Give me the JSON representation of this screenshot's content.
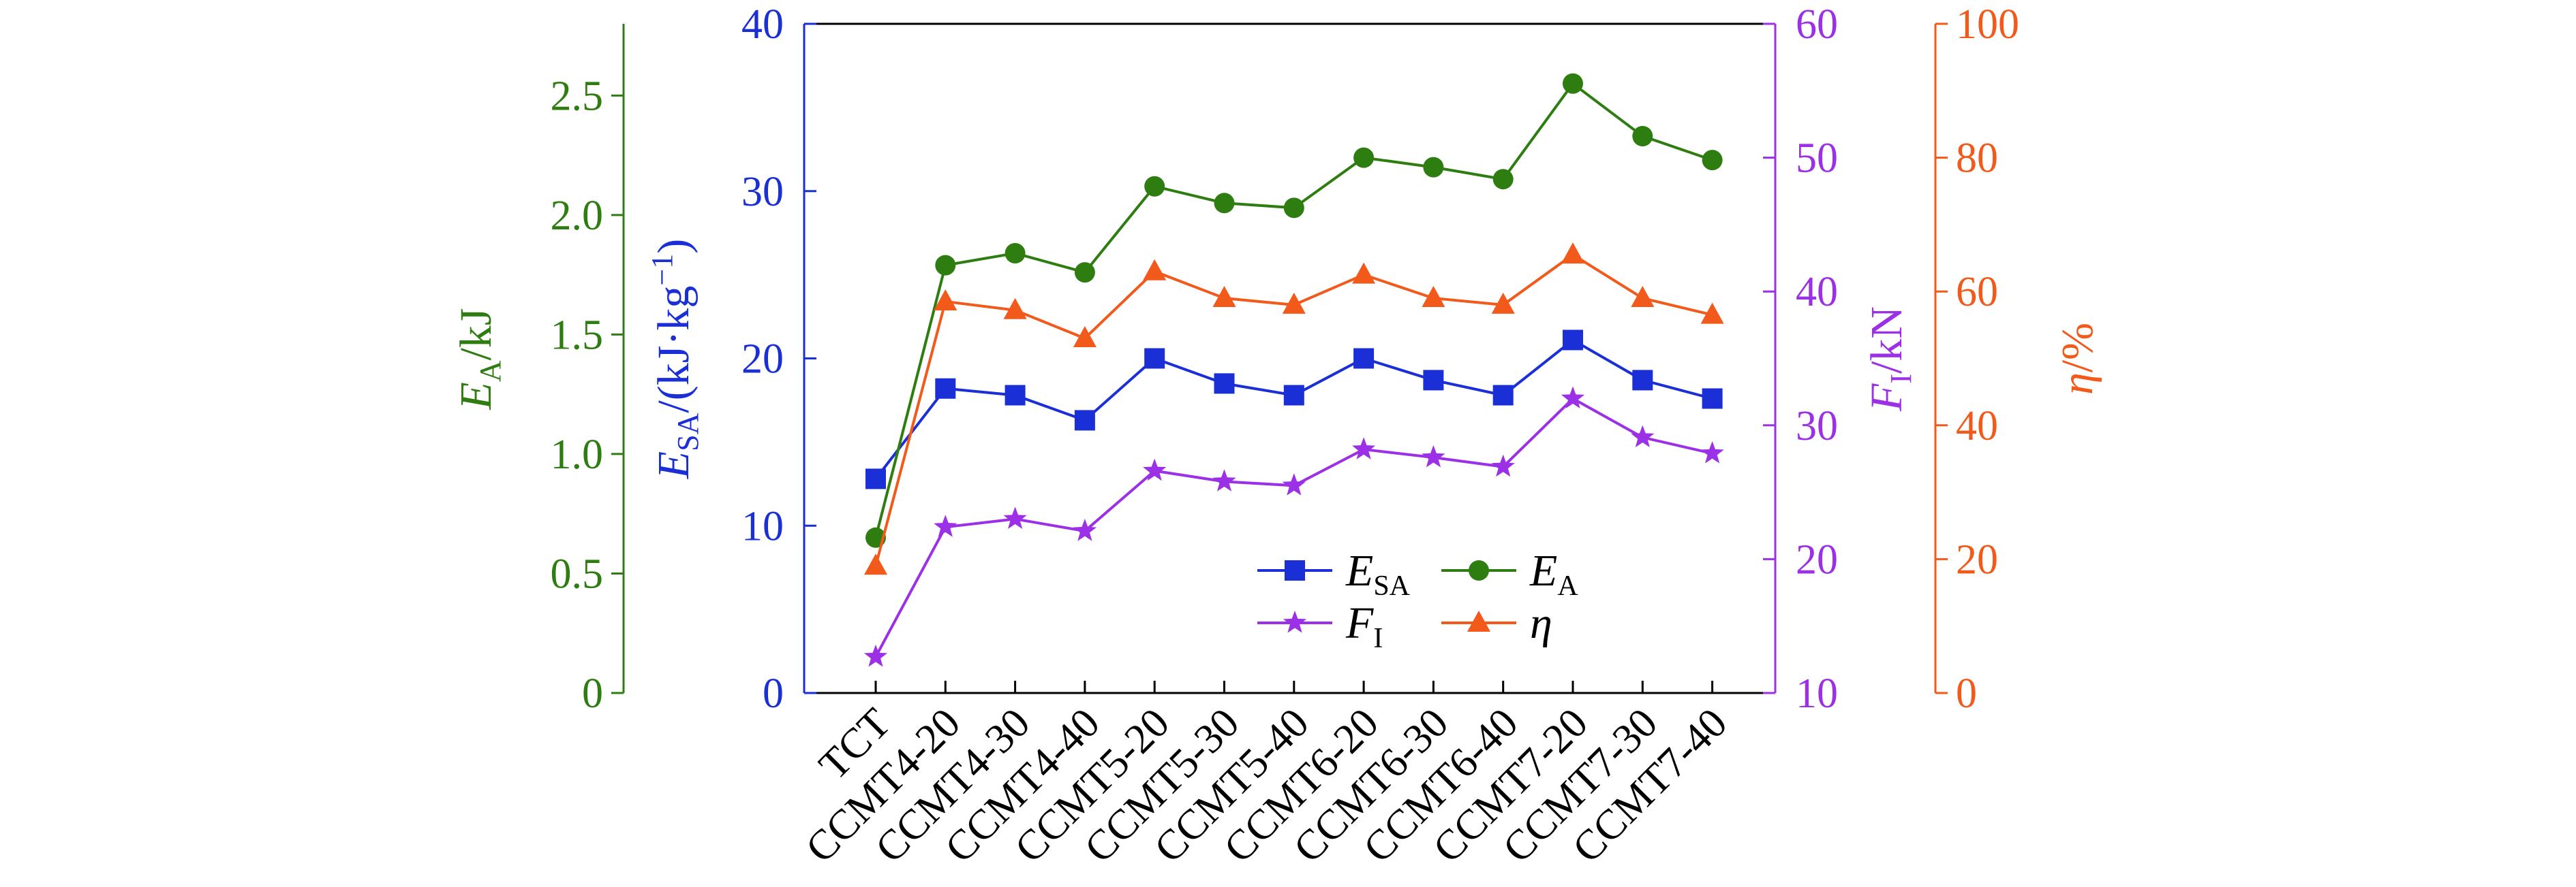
{
  "chart_data": {
    "type": "line",
    "categories": [
      "TCT",
      "CCMT4-20",
      "CCMT4-30",
      "CCMT4-40",
      "CCMT5-20",
      "CCMT5-30",
      "CCMT5-40",
      "CCMT6-20",
      "CCMT6-30",
      "CCMT6-40",
      "CCMT7-20",
      "CCMT7-30",
      "CCMT7-40"
    ],
    "axes": {
      "EA": {
        "label_main": "E",
        "label_sub": "A",
        "label_rest": "/kJ",
        "color": "#2e7d10",
        "ylim": [
          0,
          2.8
        ],
        "ticks": [
          "0",
          "0.5",
          "1.0",
          "1.5",
          "2.0",
          "2.5"
        ],
        "tick_values": [
          0,
          0.5,
          1.0,
          1.5,
          2.0,
          2.5
        ]
      },
      "ESA": {
        "label_main": "E",
        "label_sub": "SA",
        "label_rest": "/(kJ·kg",
        "label_sup": "−1",
        "label_close": ")",
        "color": "#1a2fd6",
        "ylim": [
          0,
          40
        ],
        "ticks": [
          "0",
          "10",
          "20",
          "30",
          "40"
        ],
        "tick_values": [
          0,
          10,
          20,
          30,
          40
        ]
      },
      "FI": {
        "label_main": "F",
        "label_sub": "I",
        "label_rest": "/kN",
        "color": "#9b30e6",
        "ylim": [
          10,
          60
        ],
        "ticks": [
          "10",
          "20",
          "30",
          "40",
          "50",
          "60"
        ],
        "tick_values": [
          10,
          20,
          30,
          40,
          50,
          60
        ]
      },
      "ETA": {
        "label_main": "η",
        "label_rest": "/%",
        "color": "#f25a1c",
        "ylim": [
          0,
          100
        ],
        "ticks": [
          "0",
          "20",
          "40",
          "60",
          "80",
          "100"
        ],
        "tick_values": [
          0,
          20,
          40,
          60,
          80,
          100
        ]
      }
    },
    "series": [
      {
        "name": "E_SA",
        "name_main": "E",
        "name_sub": "SA",
        "axis": "ESA",
        "marker": "square",
        "color": "#1a2fd6",
        "values": [
          12.8,
          18.2,
          17.8,
          16.3,
          20.0,
          18.5,
          17.8,
          20.0,
          18.7,
          17.8,
          21.1,
          18.7,
          17.6
        ]
      },
      {
        "name": "E_A",
        "name_main": "E",
        "name_sub": "A",
        "axis": "EA",
        "marker": "circle",
        "color": "#2e7d10",
        "values": [
          0.65,
          1.79,
          1.84,
          1.76,
          2.12,
          2.05,
          2.03,
          2.24,
          2.2,
          2.15,
          2.55,
          2.33,
          2.23
        ]
      },
      {
        "name": "F_I",
        "name_main": "F",
        "name_sub": "I",
        "axis": "FI",
        "marker": "star",
        "color": "#9b30e6",
        "values": [
          12.7,
          22.4,
          23.0,
          22.1,
          26.6,
          25.8,
          25.5,
          28.2,
          27.6,
          26.9,
          32.0,
          29.1,
          27.9
        ]
      },
      {
        "name": "η",
        "name_main": "η",
        "axis": "ETA",
        "marker": "triangle",
        "color": "#f25a1c",
        "values": [
          19.0,
          58.5,
          57.2,
          53.0,
          63.0,
          59.0,
          58.0,
          62.5,
          59.0,
          58.0,
          65.5,
          59.0,
          56.5
        ]
      }
    ],
    "legend": {
      "position": "lower-right-inside",
      "order": [
        "E_SA",
        "E_A",
        "F_I",
        "η"
      ]
    },
    "grid": false
  }
}
